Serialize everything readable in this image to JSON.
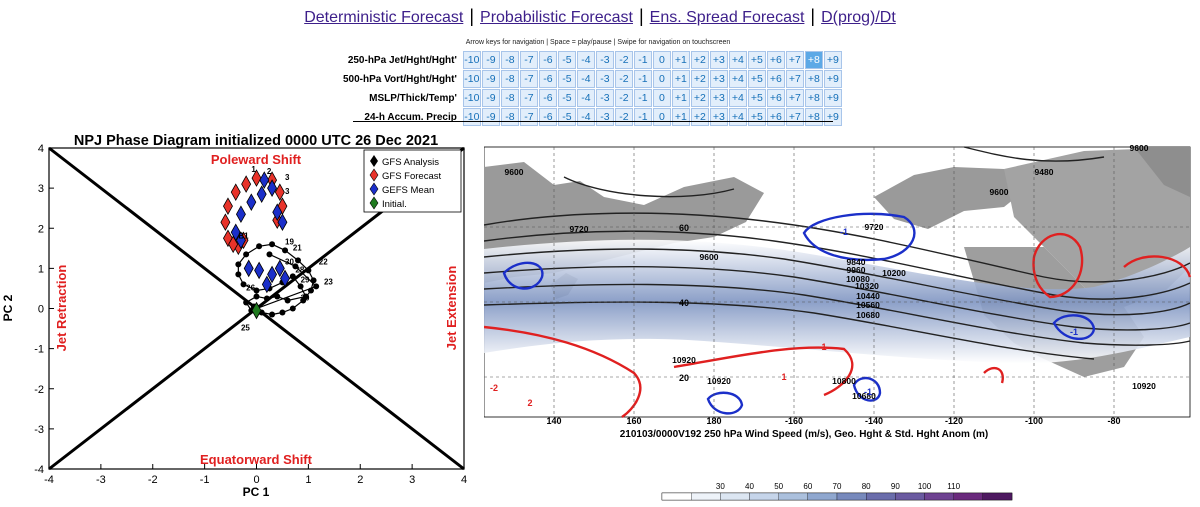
{
  "nav": {
    "links": [
      "Deterministic Forecast",
      "Probabilistic Forecast",
      "Ens. Spread Forecast",
      "D(prog)/Dt"
    ],
    "separator": "|"
  },
  "hint": "Arrow keys for navigation | Space = play/pause | Swipe for navigation on touchscreen",
  "matrix": {
    "rows": [
      "250-hPa Jet/Hght/Hght'",
      "500-hPa Vort/Hght/Hght'",
      "MSLP/Thick/Temp'",
      "24-h Accum. Precip"
    ],
    "steps": [
      "-10",
      "-9",
      "-8",
      "-7",
      "-6",
      "-5",
      "-4",
      "-3",
      "-2",
      "-1",
      "0",
      "+1",
      "+2",
      "+3",
      "+4",
      "+5",
      "+6",
      "+7",
      "+8",
      "+9"
    ],
    "selected": {
      "row": 0,
      "step": "+8"
    }
  },
  "phase": {
    "title": "NPJ Phase Diagram initialized 0000 UTC 26 Dec 2021",
    "xlabel": "PC 1",
    "ylabel": "PC 2",
    "quadrants": {
      "top": "Poleward Shift",
      "bottom": "Equatorward Shift",
      "left": "Jet Retraction",
      "right": "Jet Extension"
    },
    "legend": [
      "GFS Analysis",
      "GFS Forecast",
      "GEFS Mean",
      "Initial."
    ],
    "colors": {
      "analysis": "#000000",
      "forecast": "#e8332a",
      "gefs": "#1b2fc9",
      "initial": "#1f7a1f",
      "quadrant_text": "#e02020"
    }
  },
  "chart_data": {
    "type": "scatter",
    "title": "NPJ Phase Diagram initialized 0000 UTC 26 Dec 2021",
    "xlabel": "PC 1",
    "ylabel": "PC 2",
    "xlim": [
      -4,
      4
    ],
    "ylim": [
      -4,
      4
    ],
    "xticks": [
      "-4",
      "-3",
      "-2",
      "-1",
      "0",
      "1",
      "2",
      "3",
      "4"
    ],
    "yticks": [
      "4",
      "3",
      "2",
      "1",
      "0",
      "-1",
      "-2",
      "-3",
      "-4"
    ],
    "series": [
      {
        "name": "GFS Analysis",
        "points": [
          [
            -0.05,
            0.05
          ],
          [
            0.1,
            -0.1
          ],
          [
            0.3,
            -0.15
          ],
          [
            0.5,
            -0.1
          ],
          [
            0.7,
            0.0
          ],
          [
            0.9,
            0.2
          ],
          [
            1.05,
            0.45
          ],
          [
            1.1,
            0.7
          ],
          [
            1.0,
            0.95
          ],
          [
            0.8,
            1.2
          ],
          [
            0.55,
            1.45
          ],
          [
            0.3,
            1.6
          ],
          [
            0.05,
            1.55
          ],
          [
            -0.2,
            1.35
          ],
          [
            -0.35,
            1.1
          ],
          [
            -0.35,
            0.85
          ],
          [
            -0.25,
            0.6
          ],
          [
            0.0,
            0.45
          ],
          [
            0.25,
            0.5
          ],
          [
            0.5,
            0.65
          ],
          [
            0.7,
            0.8
          ],
          [
            0.85,
            0.55
          ],
          [
            0.95,
            0.3
          ],
          [
            0.6,
            0.2
          ],
          [
            0.4,
            0.3
          ],
          [
            0.2,
            0.25
          ],
          [
            0.0,
            0.3
          ],
          [
            -0.2,
            0.15
          ],
          [
            -0.1,
            -0.05
          ],
          [
            1.15,
            0.55
          ],
          [
            0.75,
            1.05
          ],
          [
            0.25,
            1.35
          ]
        ],
        "point_labels": [
          [
            "19",
            0.55,
            1.6
          ],
          [
            "21",
            0.7,
            1.45
          ],
          [
            "22",
            1.2,
            1.1
          ],
          [
            "23",
            1.3,
            0.6
          ],
          [
            "25",
            -0.3,
            -0.55
          ],
          [
            "26",
            -0.2,
            0.45
          ],
          [
            "28",
            0.75,
            0.9
          ],
          [
            "29",
            0.85,
            0.65
          ],
          [
            "30",
            0.85,
            0.2
          ]
        ]
      },
      {
        "name": "GFS Forecast",
        "points": [
          [
            0.0,
            3.25
          ],
          [
            -0.2,
            3.1
          ],
          [
            -0.4,
            2.9
          ],
          [
            -0.55,
            2.55
          ],
          [
            -0.6,
            2.15
          ],
          [
            -0.55,
            1.75
          ],
          [
            -0.35,
            1.55
          ],
          [
            0.3,
            3.2
          ],
          [
            0.45,
            2.9
          ],
          [
            0.5,
            2.55
          ],
          [
            0.4,
            2.2
          ],
          [
            -0.45,
            1.6
          ],
          [
            -0.25,
            1.7
          ]
        ],
        "point_labels": [
          [
            "1",
            -0.1,
            3.4
          ],
          [
            "2",
            0.2,
            3.35
          ],
          [
            "3",
            0.55,
            3.2
          ],
          [
            "B1",
            -0.35,
            1.75
          ]
        ]
      },
      {
        "name": "GEFS Mean",
        "points": [
          [
            0.15,
            3.2
          ],
          [
            0.3,
            3.0
          ],
          [
            0.1,
            2.85
          ],
          [
            -0.1,
            2.65
          ],
          [
            -0.3,
            2.35
          ],
          [
            -0.4,
            1.9
          ],
          [
            -0.3,
            1.7
          ],
          [
            0.4,
            2.4
          ],
          [
            0.5,
            2.15
          ],
          [
            0.05,
            0.95
          ],
          [
            0.3,
            0.85
          ],
          [
            0.55,
            0.75
          ],
          [
            0.2,
            0.6
          ],
          [
            -0.15,
            1.0
          ],
          [
            0.45,
            1.0
          ]
        ],
        "point_labels": [
          [
            "3",
            0.55,
            2.85
          ],
          [
            "30",
            0.55,
            1.1
          ]
        ]
      },
      {
        "name": "Initial.",
        "points": [
          [
            0.0,
            -0.05
          ]
        ]
      }
    ]
  },
  "map": {
    "caption": "210103/0000V192 250 hPa Wind Speed (m/s), Geo. Hght & Std. Hght Anom (m)",
    "lon_labels": [
      "140",
      "160",
      "180",
      "-160",
      "-140",
      "-120",
      "-100",
      "-80"
    ],
    "lat_labels": [
      "60",
      "40",
      "20"
    ],
    "contour_labels": [
      "9600",
      "9720",
      "9600",
      "9720",
      "9840",
      "9960",
      "10080",
      "10200",
      "10320",
      "10440",
      "10560",
      "10680",
      "10920",
      "10920",
      "10800",
      "10680",
      "9600",
      "9480",
      "9600",
      "10920"
    ],
    "anomaly_labels": [
      "-1",
      "1",
      "-2",
      "2",
      "-1",
      "1",
      "-1"
    ],
    "colorbar": {
      "ticks": [
        "30",
        "40",
        "50",
        "60",
        "70",
        "80",
        "90",
        "100",
        "110"
      ],
      "colors": [
        "#ffffff",
        "#eef3f9",
        "#dce6f2",
        "#c6d5ea",
        "#abc0dd",
        "#8fa7cf",
        "#7789bc",
        "#6a6dab",
        "#6a5aa0",
        "#6e4291",
        "#6a2a7d",
        "#4e1960"
      ]
    }
  }
}
